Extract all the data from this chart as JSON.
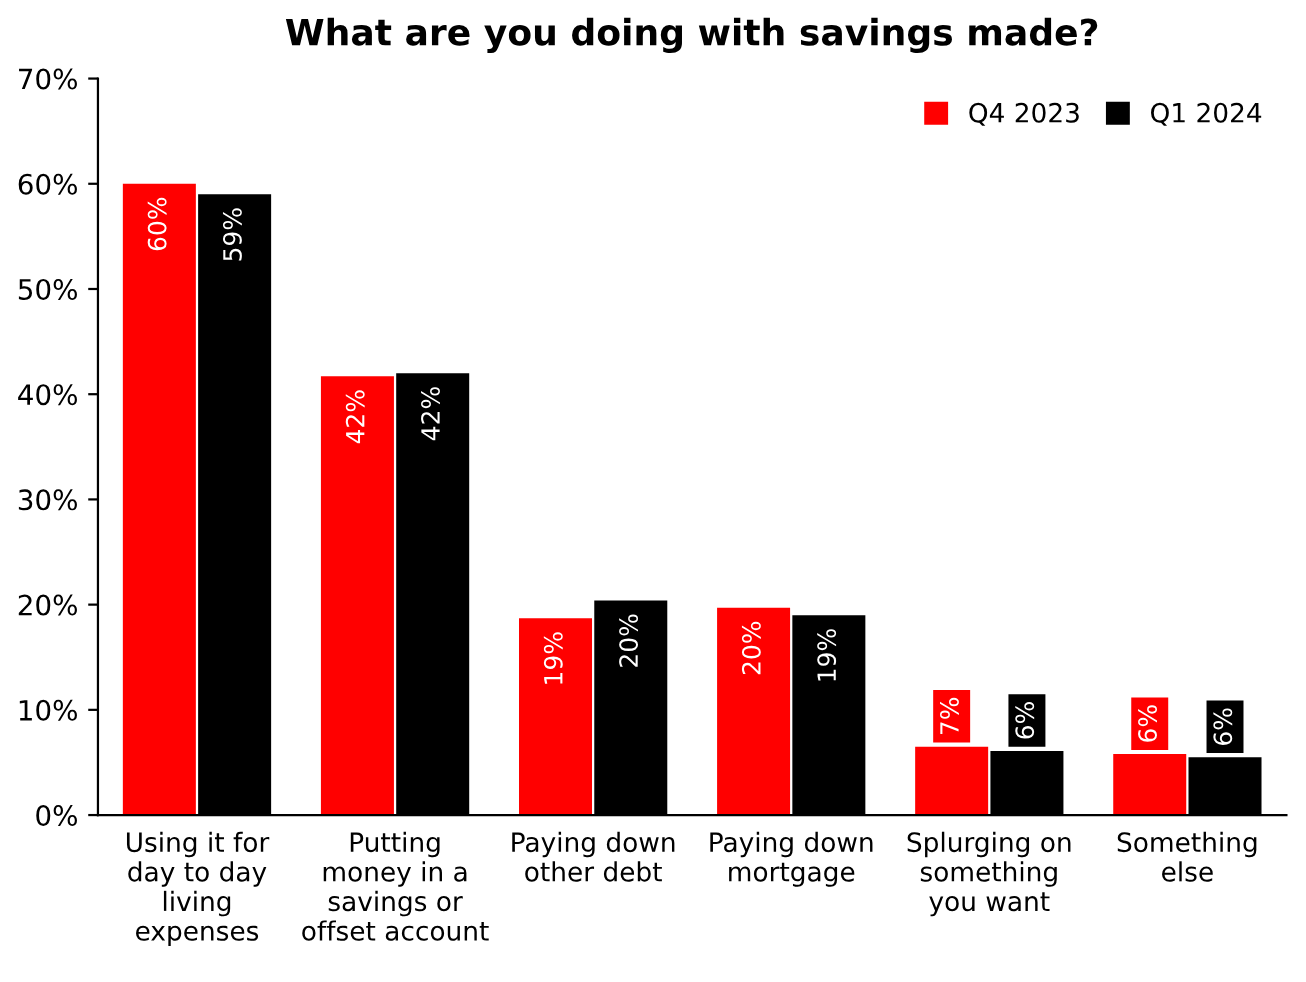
{
  "chart_data": {
    "type": "bar",
    "title": "What are you doing with savings made?",
    "categories": [
      "Using it for\nday to day\nliving\nexpenses",
      "Putting\nmoney in a\nsavings or\noffset account",
      "Paying down\nother debt",
      "Paying down\nmortgage",
      "Splurging on\nsomething\nyou want",
      "Something\nelse"
    ],
    "series": [
      {
        "name": "Q4 2023",
        "color": "#ff0000",
        "values": [
          60,
          41.7,
          18.7,
          19.7,
          6.5,
          5.8
        ],
        "value_labels": [
          "60%",
          "42%",
          "19%",
          "20%",
          "7%",
          "6%"
        ]
      },
      {
        "name": "Q1 2024",
        "color": "#000000",
        "values": [
          59,
          42,
          20.4,
          19,
          6.1,
          5.5
        ],
        "value_labels": [
          "59%",
          "42%",
          "20%",
          "19%",
          "6%",
          "6%"
        ]
      }
    ],
    "ylim": [
      0,
      70
    ],
    "yticks": [
      {
        "value": 0,
        "label": "0%"
      },
      {
        "value": 10,
        "label": "10%"
      },
      {
        "value": 20,
        "label": "20%"
      },
      {
        "value": 30,
        "label": "30%"
      },
      {
        "value": 40,
        "label": "40%"
      },
      {
        "value": 50,
        "label": "50%"
      },
      {
        "value": 60,
        "label": "60%"
      },
      {
        "value": 70,
        "label": "70%"
      }
    ],
    "grid": false,
    "legend": "top right"
  }
}
